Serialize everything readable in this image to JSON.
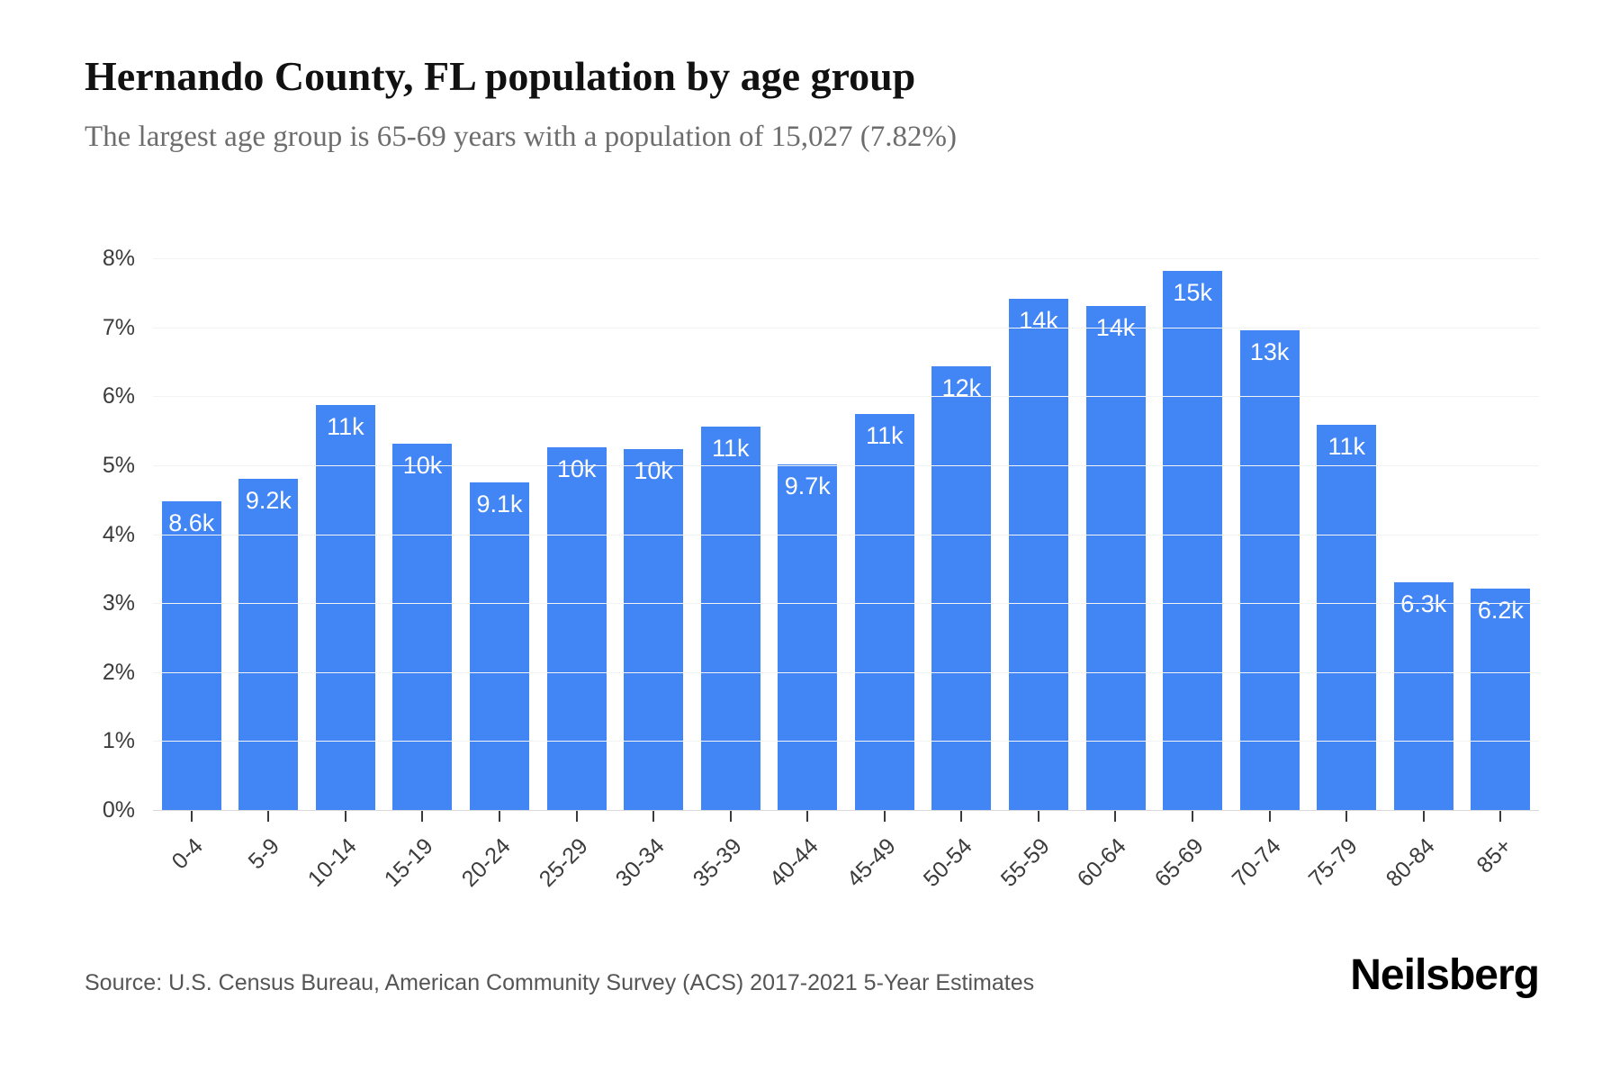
{
  "header": {
    "title": "Hernando County, FL population by age group",
    "subtitle": "The largest age group is 65-69 years with a population of 15,027 (7.82%)"
  },
  "chart_data": {
    "type": "bar",
    "title": "Hernando County, FL population by age group",
    "categories": [
      "0-4",
      "5-9",
      "10-14",
      "15-19",
      "20-24",
      "25-29",
      "30-34",
      "35-39",
      "40-44",
      "45-49",
      "50-54",
      "55-59",
      "60-64",
      "65-69",
      "70-74",
      "75-79",
      "80-84",
      "85+"
    ],
    "values_pct": [
      4.48,
      4.8,
      5.87,
      5.31,
      4.75,
      5.26,
      5.23,
      5.56,
      5.01,
      5.74,
      6.43,
      7.41,
      7.31,
      7.82,
      6.95,
      5.59,
      3.3,
      3.21
    ],
    "bar_labels": [
      "8.6k",
      "9.2k",
      "11k",
      "10k",
      "9.1k",
      "10k",
      "10k",
      "11k",
      "9.7k",
      "11k",
      "12k",
      "14k",
      "14k",
      "15k",
      "13k",
      "11k",
      "6.3k",
      "6.2k"
    ],
    "y_ticks": [
      "0%",
      "1%",
      "2%",
      "3%",
      "4%",
      "5%",
      "6%",
      "7%",
      "8%"
    ],
    "ylim": [
      0,
      8
    ],
    "xlabel": "",
    "ylabel": "",
    "grid": true,
    "legend": "none",
    "bar_color": "#4285f4"
  },
  "footer": {
    "source": "Source: U.S. Census Bureau, American Community Survey (ACS) 2017-2021 5-Year Estimates",
    "brand": "Neilsberg"
  }
}
